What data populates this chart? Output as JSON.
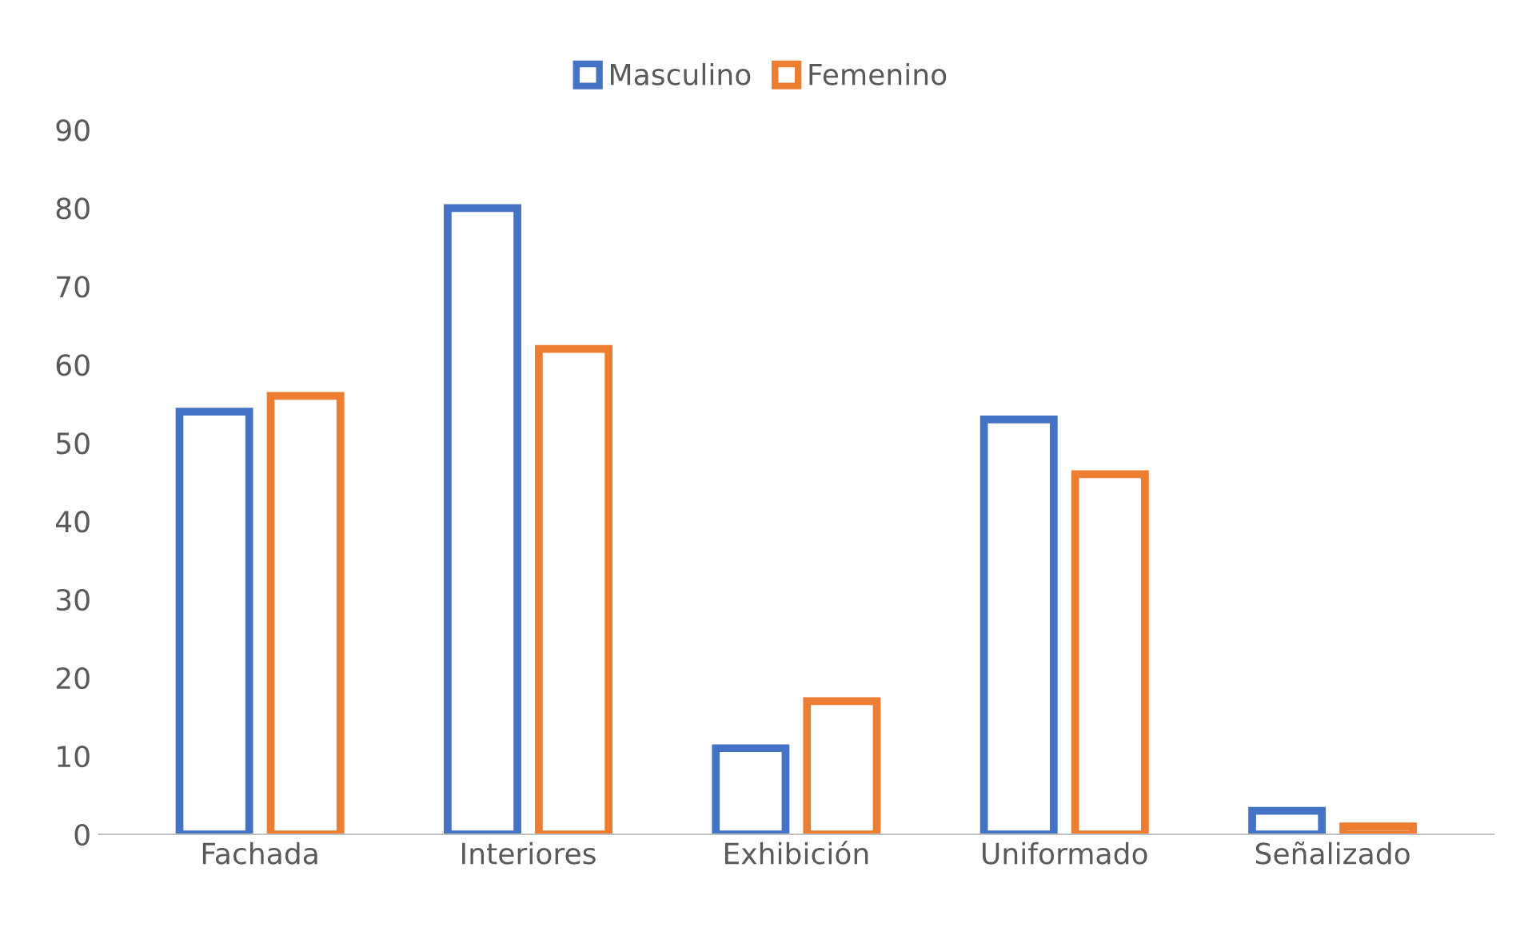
{
  "chart_data": {
    "type": "bar",
    "categories": [
      "Fachada",
      "Interiores",
      "Exhibición",
      "Uniformado",
      "Señalizado"
    ],
    "series": [
      {
        "name": "Masculino",
        "color": "#4472c4",
        "values": [
          54,
          80,
          11,
          53,
          3
        ]
      },
      {
        "name": "Femenino",
        "color": "#ed7d31",
        "values": [
          56,
          62,
          17,
          46,
          1
        ]
      }
    ],
    "ylim": [
      0,
      90
    ],
    "yticks": [
      0,
      10,
      20,
      30,
      40,
      50,
      60,
      70,
      80,
      90
    ],
    "grid": false,
    "legend": "top"
  }
}
